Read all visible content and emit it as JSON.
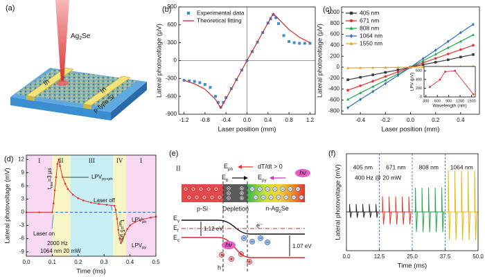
{
  "panel_labels": [
    "(a)",
    "(b)",
    "(c)",
    "(d)",
    "(e)",
    "(f)"
  ],
  "schematic": {
    "tip": {
      "text": "Ag",
      "sub": "2",
      "tail": "Se"
    },
    "electrodes": [
      "In",
      "In"
    ],
    "substrate": "p-type Si"
  },
  "band_diagram": {
    "stage": "II",
    "field_ph": {
      "text": "E",
      "sub": "ph"
    },
    "condition": "dT/dt > 0",
    "field_b": {
      "text": "E",
      "sub": "b"
    },
    "field_py": {
      "text": "E",
      "sub": "py"
    },
    "photon": "hν",
    "regions": [
      "p-Si",
      "Depletion",
      {
        "text": "n-Ag",
        "sub": "2",
        "tail": "Se"
      }
    ],
    "levels": [
      {
        "text": "E",
        "sub": "v"
      },
      {
        "text": "E",
        "sub": "f"
      },
      {
        "text": "E",
        "sub": "c"
      }
    ],
    "gap_left": "1.12 eV",
    "gap_right": "1.07 eV",
    "electron": "e⁻",
    "hole": "h⁺",
    "photon_2": "hν"
  },
  "chart_data": [
    {
      "type": "line",
      "xlabel": "Laser position (mm)",
      "ylabel": "Lateral photovoltage (μV)",
      "xlim": [
        -1.3,
        1.3
      ],
      "ylim": [
        -900,
        900
      ],
      "xticks": [
        -1.2,
        -0.8,
        -0.4,
        {
          "value": 0,
          "label": "0.0"
        },
        0.4,
        0.8,
        1.2
      ],
      "yticks": [
        -900,
        -600,
        -300,
        0,
        300,
        600,
        900
      ],
      "zero_lines": "#9a9a9a",
      "legend": "upper left",
      "series": [
        {
          "name": "Experimental data",
          "color": "#3a8fd6",
          "mode": "markers",
          "marker": "square",
          "x": [
            -1.2,
            -1.1,
            -1.0,
            -0.9,
            -0.8,
            -0.7,
            -0.6,
            -0.55,
            -0.5,
            -0.45,
            -0.4,
            -0.3,
            -0.2,
            -0.1,
            0,
            0.1,
            0.2,
            0.3,
            0.4,
            0.45,
            0.5,
            0.55,
            0.6,
            0.7,
            0.8,
            0.9,
            1.0,
            1.1,
            1.2
          ],
          "values": [
            -330,
            -340,
            -350,
            -370,
            -400,
            -450,
            -600,
            -700,
            -780,
            -700,
            -620,
            -470,
            -320,
            -160,
            0,
            150,
            310,
            470,
            630,
            700,
            770,
            720,
            620,
            420,
            320,
            300,
            290,
            290,
            290
          ]
        },
        {
          "name": "Theoretical fitting",
          "color": "#d62728",
          "mode": "line",
          "x": [
            -1.2,
            -1.0,
            -0.8,
            -0.6,
            -0.5,
            0,
            0.5,
            0.6,
            0.8,
            1.0,
            1.2
          ],
          "values": [
            -330,
            -390,
            -480,
            -650,
            -800,
            0,
            790,
            700,
            520,
            390,
            300
          ]
        }
      ]
    },
    {
      "type": "line",
      "xlabel": "Laser position (mm)",
      "ylabel": "Lateral photovoltage (μV)",
      "xlim": [
        -0.55,
        0.55
      ],
      "ylim": [
        -860,
        1100
      ],
      "xticks": [
        -0.4,
        -0.2,
        {
          "value": 0,
          "label": "0.0"
        },
        0.2,
        0.4
      ],
      "yticks": [
        -800,
        -600,
        -400,
        -200,
        0,
        200,
        400,
        600,
        800,
        1000
      ],
      "legend": "upper left",
      "x": [
        -0.5,
        -0.4,
        -0.3,
        -0.2,
        -0.1,
        0,
        0.1,
        0.2,
        0.3,
        0.4,
        0.5
      ],
      "series": [
        {
          "name": "405 nm",
          "color": "#3a3a3a",
          "mode": "line+markers",
          "marker": "square",
          "values": [
            -230,
            -185,
            -140,
            -95,
            -50,
            0,
            45,
            90,
            135,
            185,
            230
          ]
        },
        {
          "name": "671 nm",
          "color": "#e8312c",
          "mode": "line+markers",
          "marker": "circle",
          "values": [
            -420,
            -340,
            -255,
            -170,
            -85,
            0,
            80,
            160,
            240,
            320,
            400
          ]
        },
        {
          "name": "808 nm",
          "color": "#1fa84a",
          "mode": "line+markers",
          "marker": "triangle",
          "values": [
            -590,
            -470,
            -355,
            -240,
            -120,
            0,
            115,
            235,
            355,
            470,
            590
          ]
        },
        {
          "name": "1064 nm",
          "color": "#2a6fc9",
          "mode": "line+markers",
          "marker": "diamond",
          "values": [
            -740,
            -590,
            -445,
            -300,
            -150,
            0,
            155,
            310,
            470,
            630,
            780
          ]
        },
        {
          "name": "1550 nm",
          "color": "#f0a020",
          "mode": "line+markers",
          "marker": "triangle",
          "values": [
            -15,
            -12,
            -9,
            -6,
            -3,
            0,
            3,
            6,
            9,
            12,
            15
          ]
        }
      ]
    },
    {
      "type": "line",
      "xlabel": "Wavelength (nm)",
      "ylabel": "LPV (μV)",
      "xlim": [
        250,
        1600
      ],
      "ylim": [
        0,
        700
      ],
      "xticks": [
        300,
        600,
        900,
        1200,
        1500
      ],
      "yticks": [
        0,
        200,
        400,
        600
      ],
      "x": [
        405,
        671,
        808,
        1064,
        1550
      ],
      "series": [
        {
          "color": "#e8312c",
          "mode": "line+markers",
          "marker": "square",
          "values": [
            230,
            400,
            580,
            600,
            60
          ]
        }
      ]
    },
    {
      "type": "line",
      "xlabel": "Time (ms)",
      "ylabel": "Lateral photovoltage (mV)",
      "xlim": [
        0,
        0.5
      ],
      "ylim": [
        -10,
        13
      ],
      "xticks": [
        {
          "value": 0,
          "label": "0.0"
        },
        0.1,
        0.2,
        0.3,
        0.4,
        0.5
      ],
      "yticks": [
        -9,
        -6,
        -3,
        0,
        3,
        6,
        9,
        12
      ],
      "zero_line_dashed": "#2a6fd6",
      "regions": [
        {
          "label": "I",
          "start": 0,
          "end": 0.1,
          "color": "#f8d8f3"
        },
        {
          "label": "II",
          "start": 0.1,
          "end": 0.17,
          "color": "#f7f5c6"
        },
        {
          "label": "III",
          "start": 0.17,
          "end": 0.335,
          "color": "#c8eff5"
        },
        {
          "label": "IV",
          "start": 0.335,
          "end": 0.385,
          "color": "#f7f5c6"
        },
        {
          "label": "I",
          "start": 0.385,
          "end": 0.5,
          "color": "#f8d8f3"
        }
      ],
      "x": [
        0,
        0.05,
        0.1,
        0.105,
        0.11,
        0.115,
        0.12,
        0.125,
        0.13,
        0.14,
        0.15,
        0.16,
        0.18,
        0.2,
        0.22,
        0.25,
        0.28,
        0.31,
        0.34,
        0.345,
        0.35,
        0.355,
        0.36,
        0.365,
        0.37,
        0.38,
        0.39,
        0.4,
        0.42,
        0.45,
        0.48,
        0.5
      ],
      "series": [
        {
          "color": "#e03030",
          "mode": "line+markers",
          "marker": "circle",
          "values": [
            0,
            0,
            0,
            2,
            5,
            8,
            11,
            12,
            10.5,
            8,
            6.5,
            5.3,
            4,
            3.2,
            2.7,
            2.2,
            1.9,
            1.7,
            1.5,
            0.5,
            -1.5,
            -4,
            -6,
            -7,
            -6.5,
            -5,
            -3.8,
            -3,
            -2.2,
            -1.6,
            -1.2,
            -1
          ]
        }
      ],
      "annotations": [
        {
          "text": "LPV",
          "sub": "py+ph"
        },
        "Laser off",
        {
          "text": "LPV",
          "sub": "ph"
        },
        "Laser on",
        {
          "text": "t",
          "sub": "fall",
          "tail": "=5 μs"
        },
        {
          "text": "t",
          "sub": "rise",
          "tail": "=3 μs"
        },
        {
          "text": "LPV",
          "sub": "py"
        },
        "2000 Hz",
        "1064 nm 20 mW"
      ]
    },
    {
      "type": "spike",
      "xlabel": "Time (ms)",
      "ylabel": "Lateral photovoltage (mV)",
      "xlim": [
        0,
        50
      ],
      "ylim": [
        -8,
        12
      ],
      "xticks": [
        {
          "value": 0,
          "label": "0.0"
        },
        12.5,
        {
          "value": 25,
          "label": "25.0"
        },
        37.5,
        {
          "value": 50,
          "label": "50.0"
        }
      ],
      "divider_color": "#3a8fd8",
      "series": [
        {
          "name": "405 nm",
          "color": "#222222",
          "x": [
            1.2,
            3.7,
            6.2,
            8.7,
            11.2
          ],
          "values": [
            1.6,
            1.6,
            1.6,
            1.6,
            1.6
          ],
          "lows": [
            -1.2,
            -1.2,
            -1.2,
            -1.2,
            -1.2
          ]
        },
        {
          "name": "671 nm",
          "color": "#e8312c",
          "x": [
            13.7,
            16.2,
            18.7,
            21.2,
            23.7
          ],
          "values": [
            3.2,
            3.2,
            3.2,
            3.2,
            3.2
          ],
          "lows": [
            -2.6,
            -2.6,
            -2.6,
            -2.6,
            -2.6
          ]
        },
        {
          "name": "808 nm",
          "color": "#1fa84a",
          "x": [
            26.2,
            28.7,
            31.2,
            33.7,
            36.2
          ],
          "values": [
            5,
            5,
            5,
            5,
            5
          ],
          "lows": [
            -4.2,
            -4.2,
            -4.2,
            -4.2,
            -4.2
          ]
        },
        {
          "name": "1064 nm",
          "color": "#e8b800",
          "x": [
            38.7,
            41.2,
            43.7,
            46.2,
            48.7
          ],
          "values": [
            8.5,
            8.5,
            8.5,
            8.5,
            8.5
          ],
          "lows": [
            -5.8,
            -5.8,
            -5.8,
            -5.8,
            -5.8
          ]
        }
      ],
      "annotations": [
        "400 Hz @ 20 mW"
      ]
    }
  ]
}
